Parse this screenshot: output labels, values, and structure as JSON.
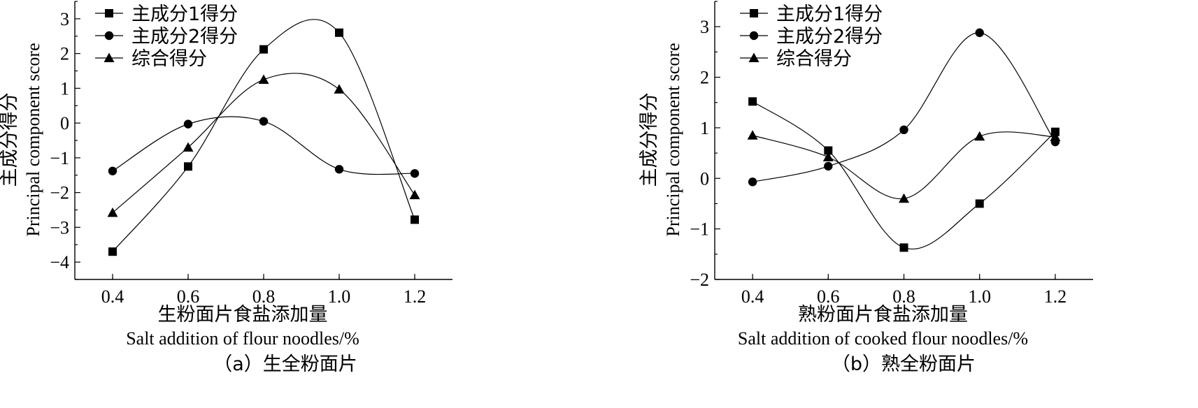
{
  "chart_data": [
    {
      "type": "line",
      "caption": "（a）生全粉面片",
      "xlabel_cn": "生粉面片食盐添加量",
      "xlabel_en": "Salt addition of flour noodles/%",
      "ylabel_cn": "主成分得分",
      "ylabel_en": "Principal component score",
      "x": [
        0.4,
        0.6,
        0.8,
        1.0,
        1.2
      ],
      "x_tick_labels": [
        "0.4",
        "0.6",
        "0.8",
        "1.0",
        "1.2"
      ],
      "xlim": [
        0.3,
        1.3
      ],
      "ylim": [
        -4.5,
        3.5
      ],
      "y_ticks": [
        3,
        2,
        1,
        0,
        -1,
        -2,
        -3,
        -4
      ],
      "y_tick_labels": [
        "3",
        "2",
        "1",
        "0",
        "−1",
        "−2",
        "−3",
        "−4"
      ],
      "legend_position": "top-left",
      "smooth": true,
      "series": [
        {
          "name": "主成分1得分",
          "marker": "square",
          "values": [
            -3.7,
            -1.25,
            2.12,
            2.6,
            -2.78
          ]
        },
        {
          "name": "主成分2得分",
          "marker": "circle",
          "values": [
            -1.38,
            -0.03,
            0.05,
            -1.33,
            -1.45
          ]
        },
        {
          "name": "综合得分",
          "marker": "triangle",
          "values": [
            -2.58,
            -0.7,
            1.25,
            0.97,
            -2.07
          ]
        }
      ]
    },
    {
      "type": "line",
      "caption": "（b）熟全粉面片",
      "xlabel_cn": "熟粉面片食盐添加量",
      "xlabel_en": "Salt addition of cooked flour noodles/%",
      "ylabel_cn": "主成分得分",
      "ylabel_en": "Principal component score",
      "x": [
        0.4,
        0.6,
        0.8,
        1.0,
        1.2
      ],
      "x_tick_labels": [
        "0.4",
        "0.6",
        "0.8",
        "1.0",
        "1.2"
      ],
      "xlim": [
        0.3,
        1.3
      ],
      "ylim": [
        -2,
        3.5
      ],
      "y_ticks": [
        3,
        2,
        1,
        0,
        -1,
        -2
      ],
      "y_tick_labels": [
        "3",
        "2",
        "1",
        "0",
        "−1",
        "−2"
      ],
      "legend_position": "top-left",
      "smooth": true,
      "series": [
        {
          "name": "主成分1得分",
          "marker": "square",
          "values": [
            1.52,
            0.55,
            -1.37,
            -0.5,
            0.92
          ]
        },
        {
          "name": "主成分2得分",
          "marker": "circle",
          "values": [
            -0.07,
            0.24,
            0.96,
            2.88,
            0.72
          ]
        },
        {
          "name": "综合得分",
          "marker": "triangle",
          "values": [
            0.85,
            0.42,
            -0.4,
            0.83,
            0.82
          ]
        }
      ]
    }
  ]
}
